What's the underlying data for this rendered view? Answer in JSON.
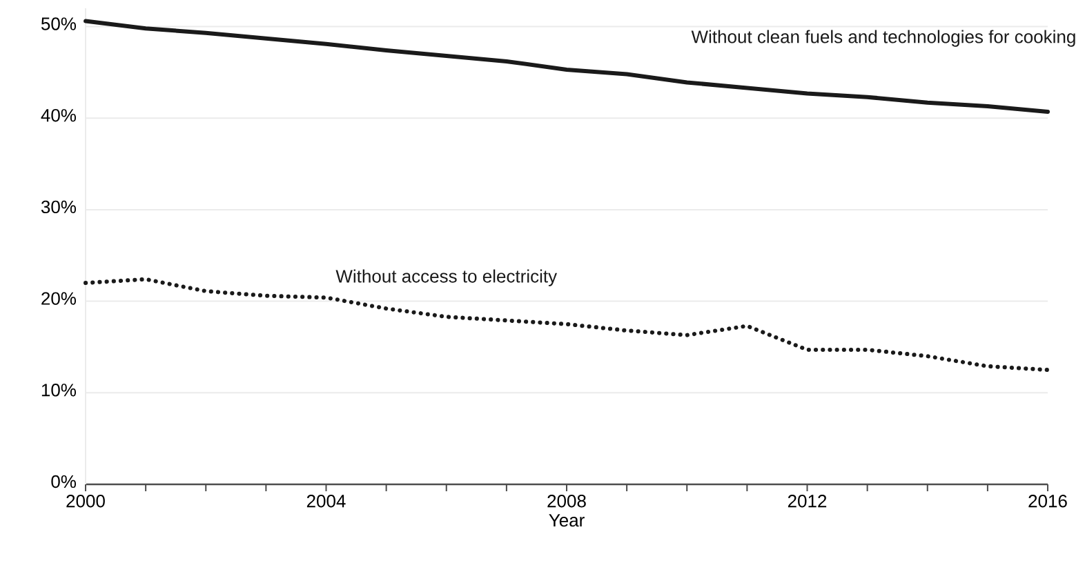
{
  "chart_data": {
    "type": "line",
    "xlabel": "Year",
    "x": [
      2000,
      2001,
      2002,
      2003,
      2004,
      2005,
      2006,
      2007,
      2008,
      2009,
      2010,
      2011,
      2012,
      2013,
      2014,
      2015,
      2016
    ],
    "series": [
      {
        "name": "Without clean fuels and technologies for cooking",
        "color": "#1a1a1a",
        "line_style": "solid",
        "values": [
          50.6,
          49.8,
          49.3,
          48.7,
          48.1,
          47.4,
          46.8,
          46.2,
          45.3,
          44.8,
          43.9,
          43.3,
          42.7,
          42.3,
          41.7,
          41.3,
          40.7
        ]
      },
      {
        "name": "Without access to electricity",
        "color": "#1a1a1a",
        "line_style": "dotted",
        "values": [
          22.0,
          22.4,
          21.1,
          20.6,
          20.4,
          19.2,
          18.3,
          17.9,
          17.5,
          16.8,
          16.3,
          17.3,
          14.7,
          14.7,
          14.0,
          12.9,
          12.5
        ]
      }
    ],
    "xlim": [
      2000,
      2016
    ],
    "xticks": [
      2000,
      {
        "value": 2001,
        "label": null
      },
      {
        "value": 2002,
        "label": null
      },
      {
        "value": 2003,
        "label": null
      },
      2004,
      {
        "value": 2005,
        "label": null
      },
      {
        "value": 2006,
        "label": null
      },
      {
        "value": 2007,
        "label": null
      },
      2008,
      {
        "value": 2009,
        "label": null
      },
      {
        "value": 2010,
        "label": null
      },
      {
        "value": 2011,
        "label": null
      },
      2012,
      {
        "value": 2013,
        "label": null
      },
      {
        "value": 2014,
        "label": null
      },
      {
        "value": 2015,
        "label": null
      },
      2016
    ],
    "ylim": [
      0,
      52
    ],
    "yticks": [
      {
        "value": 0,
        "label": "0%"
      },
      {
        "value": 10,
        "label": "10%"
      },
      {
        "value": 20,
        "label": "20%"
      },
      {
        "value": 30,
        "label": "30%"
      },
      {
        "value": 40,
        "label": "40%"
      },
      {
        "value": 50,
        "label": "50%"
      }
    ],
    "grid": "y",
    "legend": false,
    "marker": "none"
  }
}
